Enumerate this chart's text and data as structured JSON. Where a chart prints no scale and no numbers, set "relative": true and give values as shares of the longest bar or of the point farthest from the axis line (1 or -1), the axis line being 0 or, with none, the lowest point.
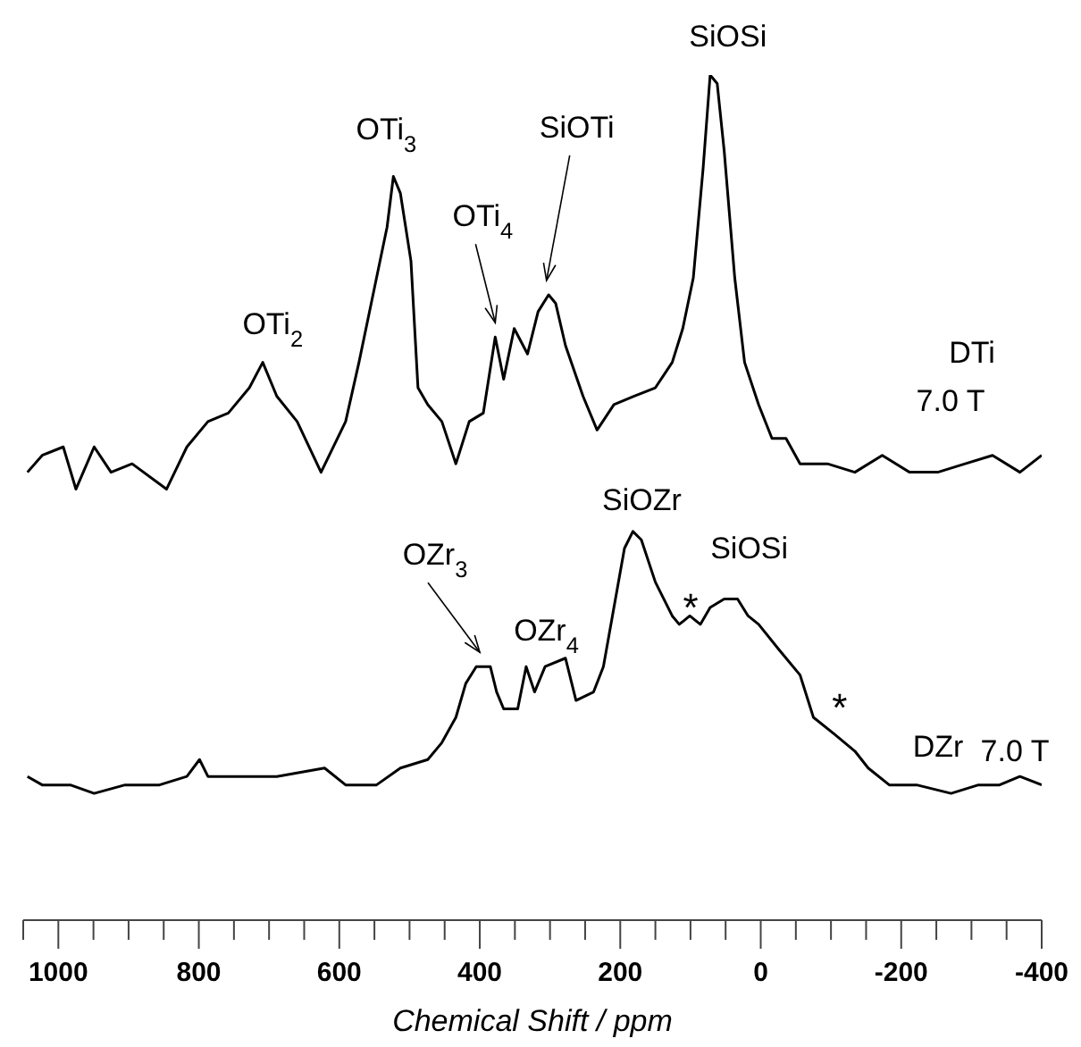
{
  "chart_data": {
    "type": "line",
    "relative": true,
    "xlabel": "Chemical Shift / ppm",
    "xlim": [
      1050,
      -400
    ],
    "xticks": [
      {
        "value": 1050,
        "label": null
      },
      1000,
      {
        "value": 950,
        "label": null
      },
      {
        "value": 900,
        "label": null
      },
      {
        "value": 850,
        "label": null
      },
      800,
      {
        "value": 750,
        "label": null
      },
      {
        "value": 700,
        "label": null
      },
      {
        "value": 650,
        "label": null
      },
      600,
      {
        "value": 550,
        "label": null
      },
      {
        "value": 500,
        "label": null
      },
      {
        "value": 450,
        "label": null
      },
      400,
      {
        "value": 350,
        "label": null
      },
      {
        "value": 300,
        "label": null
      },
      {
        "value": 250,
        "label": null
      },
      200,
      {
        "value": 150,
        "label": null
      },
      {
        "value": 100,
        "label": null
      },
      {
        "value": 50,
        "label": null
      },
      0,
      {
        "value": -50,
        "label": null
      },
      {
        "value": -100,
        "label": null
      },
      {
        "value": -150,
        "label": null
      },
      -200,
      {
        "value": -250,
        "label": null
      },
      {
        "value": -300,
        "label": null
      },
      {
        "value": -350,
        "label": null
      },
      -400
    ],
    "series": [
      {
        "name": "DTi",
        "color": "#000000",
        "x": [
          1044,
          1023,
          993,
          975,
          949,
          925,
          895,
          846,
          817,
          787,
          758,
          728,
          709,
          689,
          660,
          626,
          591,
          572,
          547,
          532,
          523,
          513,
          498,
          488,
          474,
          454,
          434,
          415,
          395,
          378,
          366,
          351,
          332,
          317,
          302,
          292,
          278,
          253,
          233,
          209,
          180,
          150,
          126,
          111,
          96,
          82,
          72,
          62,
          52,
          37,
          23,
          3,
          -16,
          -36,
          -56,
          -95,
          -134,
          -173,
          -212,
          -252,
          -291,
          -330,
          -369,
          -400
        ],
        "values": [
          0.53,
          0.55,
          0.56,
          0.51,
          0.56,
          0.53,
          0.54,
          0.51,
          0.56,
          0.59,
          0.6,
          0.63,
          0.66,
          0.62,
          0.59,
          0.53,
          0.59,
          0.66,
          0.76,
          0.82,
          0.88,
          0.86,
          0.78,
          0.63,
          0.61,
          0.59,
          0.54,
          0.59,
          0.6,
          0.69,
          0.64,
          0.7,
          0.67,
          0.72,
          0.74,
          0.73,
          0.68,
          0.62,
          0.58,
          0.61,
          0.62,
          0.63,
          0.66,
          0.7,
          0.76,
          0.89,
          1.0,
          0.99,
          0.91,
          0.76,
          0.66,
          0.61,
          0.57,
          0.57,
          0.54,
          0.54,
          0.53,
          0.55,
          0.53,
          0.53,
          0.54,
          0.55,
          0.53,
          0.55
        ]
      },
      {
        "name": "DZr",
        "color": "#000000",
        "x": [
          1044,
          1023,
          983,
          949,
          905,
          856,
          817,
          799,
          787,
          738,
          689,
          621,
          591,
          547,
          513,
          474,
          454,
          434,
          420,
          405,
          385,
          376,
          366,
          346,
          334,
          322,
          307,
          278,
          263,
          238,
          224,
          209,
          194,
          182,
          170,
          150,
          126,
          116,
          101,
          86,
          72,
          52,
          33,
          18,
          3,
          -26,
          -56,
          -75,
          -105,
          -134,
          -153,
          -183,
          -222,
          -271,
          -310,
          -340,
          -369,
          -400
        ],
        "values": [
          0.17,
          0.16,
          0.16,
          0.15,
          0.16,
          0.16,
          0.17,
          0.19,
          0.17,
          0.17,
          0.17,
          0.18,
          0.16,
          0.16,
          0.18,
          0.19,
          0.21,
          0.24,
          0.28,
          0.3,
          0.3,
          0.27,
          0.25,
          0.25,
          0.3,
          0.27,
          0.3,
          0.31,
          0.26,
          0.27,
          0.3,
          0.37,
          0.44,
          0.46,
          0.45,
          0.4,
          0.36,
          0.35,
          0.36,
          0.35,
          0.37,
          0.38,
          0.38,
          0.36,
          0.35,
          0.32,
          0.29,
          0.24,
          0.22,
          0.2,
          0.18,
          0.16,
          0.16,
          0.15,
          0.16,
          0.16,
          0.17,
          0.16
        ]
      }
    ],
    "annotations": [
      {
        "text": "OTi$_{2}$",
        "x": 705,
        "y": 0.66
      },
      {
        "text": "OTi$_{3}$",
        "x": 523,
        "y": 0.88
      },
      {
        "text": "OTi$_{4}$",
        "x": 378,
        "y": 0.69
      },
      {
        "text": "SiOTi",
        "x": 305,
        "y": 0.74
      },
      {
        "text": "SiOSi",
        "x": 67,
        "y": 1.0
      },
      {
        "text": "SiOZr",
        "x": 182,
        "y": 0.46
      },
      {
        "text": "SiOSi",
        "x": 52,
        "y": 0.38
      },
      {
        "text": "OZr$_{3}$",
        "x": 400,
        "y": 0.3
      },
      {
        "text": "OZr$_{4}$",
        "x": 290,
        "y": 0.31
      },
      {
        "text": "*",
        "x": 110,
        "y": 0.35
      },
      {
        "text": "*",
        "x": -115,
        "y": 0.21
      },
      "7.0 T",
      "7.0 T"
    ]
  }
}
